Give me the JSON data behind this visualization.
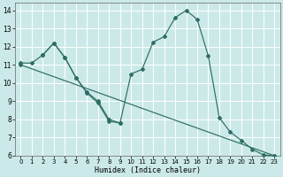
{
  "xlabel": "Humidex (Indice chaleur)",
  "background_color": "#cce9e9",
  "grid_color": "#ffffff",
  "line_color": "#2d6e62",
  "xlim": [
    -0.5,
    23.5
  ],
  "ylim": [
    6,
    14.4
  ],
  "xticks": [
    0,
    1,
    2,
    3,
    4,
    5,
    6,
    7,
    8,
    9,
    10,
    11,
    12,
    13,
    14,
    15,
    16,
    17,
    18,
    19,
    20,
    21,
    22,
    23
  ],
  "yticks": [
    6,
    7,
    8,
    9,
    10,
    11,
    12,
    13,
    14
  ],
  "series1_x": [
    0,
    1,
    2,
    3,
    4,
    5,
    6,
    7,
    8,
    9,
    10,
    11,
    12,
    13,
    14,
    15,
    16,
    17,
    18,
    19,
    20,
    21,
    22,
    23
  ],
  "series1_y": [
    11.1,
    11.1,
    11.55,
    12.2,
    11.4,
    10.3,
    9.5,
    9.0,
    8.0,
    7.8,
    10.5,
    10.75,
    12.25,
    12.55,
    13.6,
    14.0,
    13.5,
    11.5,
    8.1,
    7.3,
    6.85,
    6.35,
    6.05,
    6.0
  ],
  "series2_x": [
    2,
    3,
    4,
    5,
    6,
    7,
    8,
    9
  ],
  "series2_y": [
    11.55,
    12.2,
    11.4,
    10.3,
    9.45,
    8.9,
    7.9,
    7.8
  ],
  "series3_x": [
    0,
    23
  ],
  "series3_y": [
    11.0,
    6.0
  ]
}
